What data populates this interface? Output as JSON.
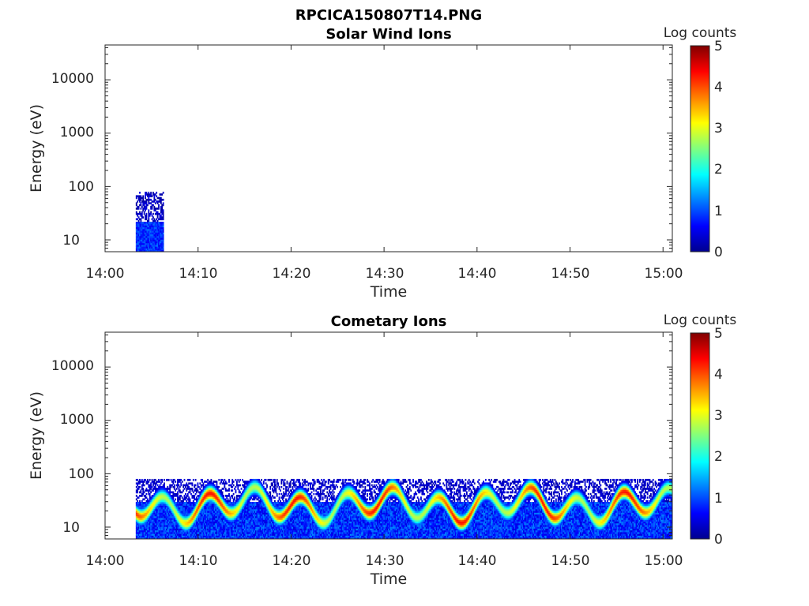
{
  "figure_title": "RPCICA150807T14.PNG",
  "chart_data": [
    {
      "type": "heatmap",
      "title": "Solar Wind Ions",
      "xlabel": "Time",
      "ylabel": "Energy (eV)",
      "x_ticks": [
        "14:00",
        "14:10",
        "14:20",
        "14:30",
        "14:40",
        "14:50",
        "15:00"
      ],
      "xlim": [
        "14:00",
        "15:01"
      ],
      "y_scale": "log",
      "y_ticks": [
        "10",
        "100",
        "1000",
        "10000"
      ],
      "ylim": [
        6,
        45000
      ],
      "colorbar": {
        "label": "Log counts",
        "ticks": [
          "0",
          "1",
          "2",
          "3",
          "4",
          "5"
        ],
        "range": [
          0,
          5
        ],
        "colormap": "jet"
      },
      "data_regions": [
        {
          "time_start": "14:03.3",
          "time_end": "14:06.3",
          "energy_low": 6,
          "energy_high": 80,
          "log_counts_range": [
            0,
            1.2
          ]
        }
      ]
    },
    {
      "type": "heatmap",
      "title": "Cometary Ions",
      "xlabel": "Time",
      "ylabel": "Energy (eV)",
      "x_ticks": [
        "14:00",
        "14:10",
        "14:20",
        "14:30",
        "14:40",
        "14:50",
        "15:00"
      ],
      "xlim": [
        "14:00",
        "15:01"
      ],
      "y_scale": "log",
      "y_ticks": [
        "10",
        "100",
        "1000",
        "10000"
      ],
      "ylim": [
        6,
        45000
      ],
      "colorbar": {
        "label": "Log counts",
        "ticks": [
          "0",
          "1",
          "2",
          "3",
          "4",
          "5"
        ],
        "range": [
          0,
          5
        ],
        "colormap": "jet"
      },
      "data_regions": [
        {
          "time_start": "14:03.3",
          "time_end": "15:01",
          "energy_low": 6,
          "energy_high": 80,
          "log_counts_range": [
            0,
            4.3
          ],
          "peak_band_energy": [
            15,
            40
          ]
        }
      ]
    }
  ]
}
